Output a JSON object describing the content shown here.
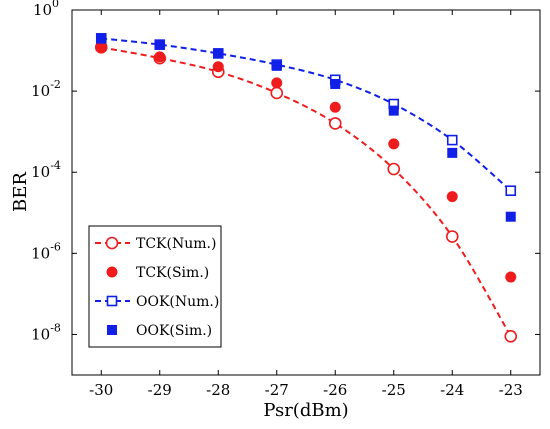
{
  "chart_data": {
    "type": "line",
    "xlabel": "Psr(dBm)",
    "ylabel": "BER",
    "xlim": [
      -30.5,
      -22.5
    ],
    "ylim": [
      1e-09,
      1
    ],
    "yscale": "log",
    "grid": false,
    "legend_position": "bottom-left",
    "x_ticks": [
      -30,
      -29,
      -28,
      -27,
      -26,
      -25,
      -24,
      -23
    ],
    "x_tick_labels": [
      "-30",
      "-29",
      "-28",
      "-27",
      "-26",
      "-25",
      "-24",
      "-23"
    ],
    "y_ticks": [
      {
        "value": 1e-08,
        "base": "10",
        "exp": "-8"
      },
      {
        "value": 1e-06,
        "base": "10",
        "exp": "-6"
      },
      {
        "value": 0.0001,
        "base": "10",
        "exp": "-4"
      },
      {
        "value": 0.01,
        "base": "10",
        "exp": "-2"
      },
      {
        "value": 1,
        "base": "10",
        "exp": "0"
      }
    ],
    "series": [
      {
        "name": "TCK(Num.)",
        "style": "dashed-line-open-circle",
        "color": "#ee1c1c",
        "x": [
          -30,
          -29,
          -28,
          -27,
          -26,
          -25,
          -24,
          -23
        ],
        "y": [
          0.12,
          0.065,
          0.03,
          0.009,
          0.0016,
          0.00012,
          2.6e-06,
          9e-09
        ]
      },
      {
        "name": "TCK(Sim.)",
        "style": "filled-circle",
        "color": "#ee1c1c",
        "x": [
          -30,
          -29,
          -28,
          -27,
          -26,
          -25,
          -24,
          -23
        ],
        "y": [
          0.12,
          0.07,
          0.04,
          0.016,
          0.004,
          0.0005,
          2.5e-05,
          2.6e-07
        ]
      },
      {
        "name": "OOK(Num.)",
        "style": "dashed-line-open-square",
        "color": "#1020e6",
        "x": [
          -30,
          -29,
          -28,
          -27,
          -26,
          -25,
          -24,
          -23
        ],
        "y": [
          0.2,
          0.14,
          0.085,
          0.045,
          0.019,
          0.0048,
          0.00062,
          3.5e-05
        ]
      },
      {
        "name": "OOK(Sim.)",
        "style": "filled-square",
        "color": "#1020e6",
        "x": [
          -30,
          -29,
          -28,
          -27,
          -26,
          -25,
          -24,
          -23
        ],
        "y": [
          0.2,
          0.14,
          0.085,
          0.042,
          0.015,
          0.0033,
          0.0003,
          8e-06
        ]
      }
    ]
  }
}
